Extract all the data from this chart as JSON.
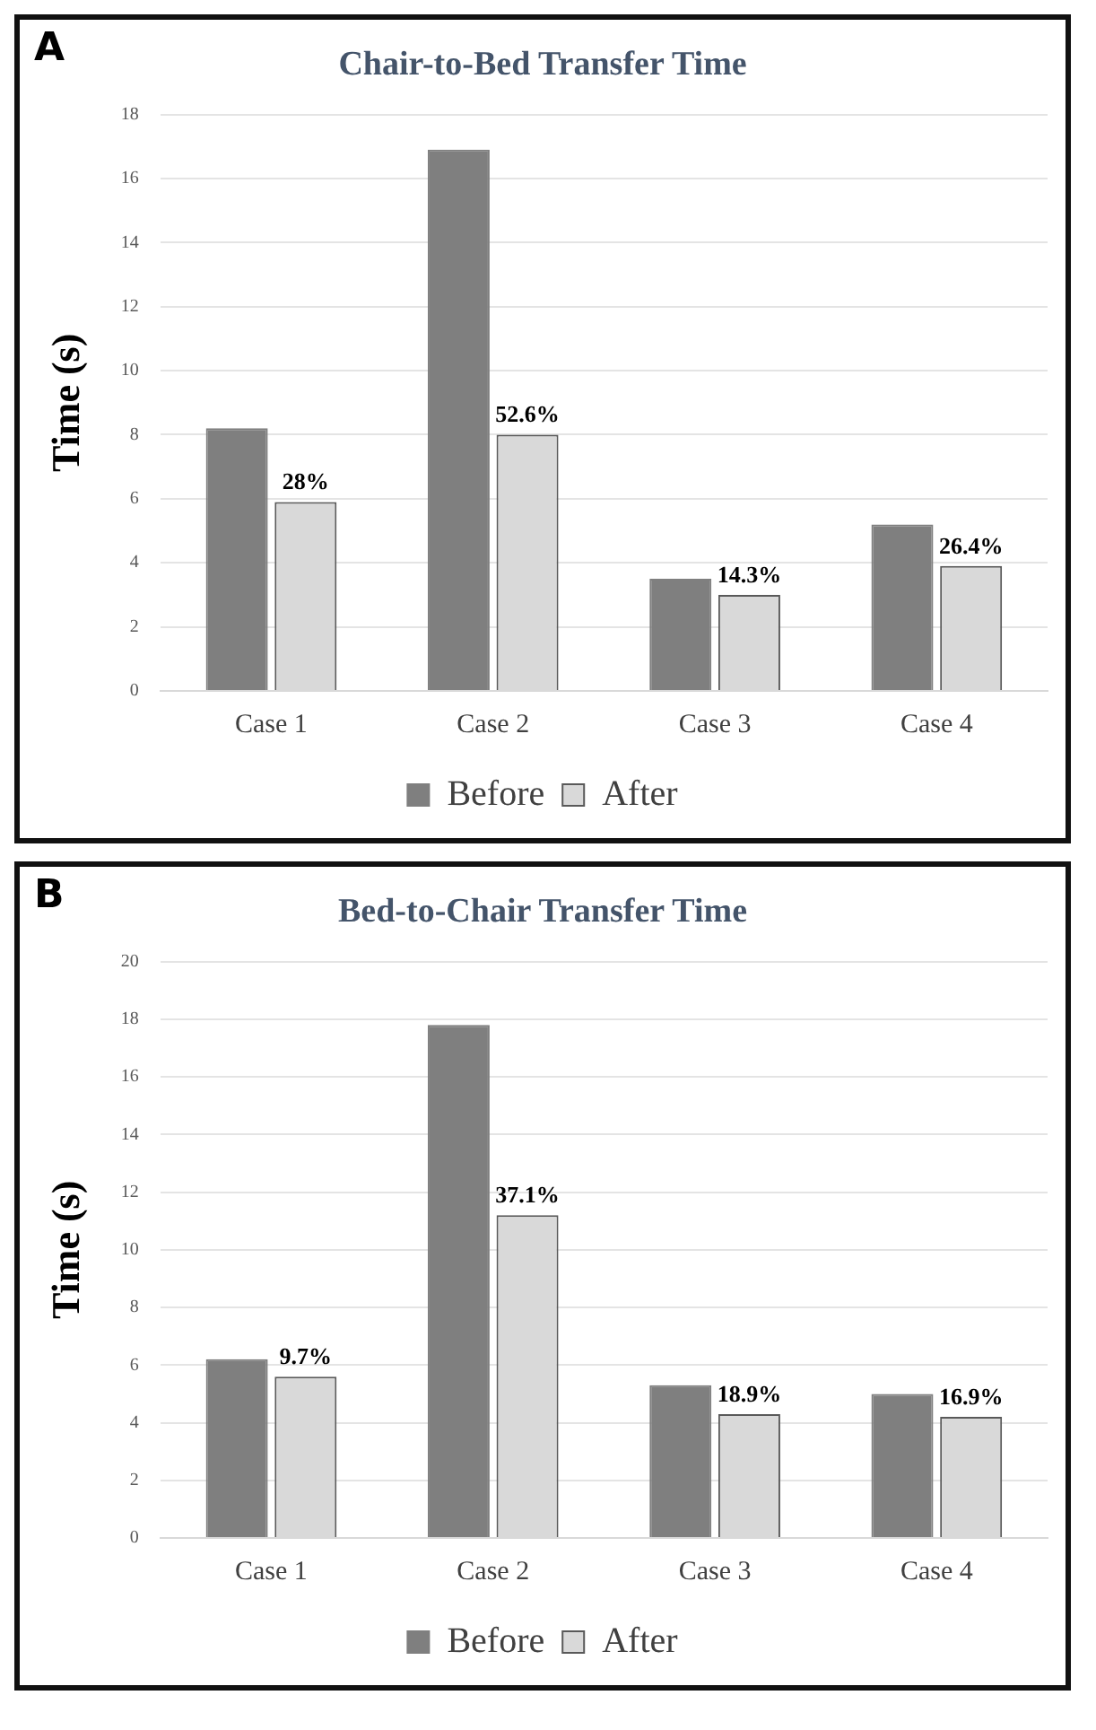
{
  "chart_data": [
    {
      "type": "bar",
      "title": "Chair-to-Bed Transfer Time",
      "ylabel": "Time (s)",
      "categories": [
        "Case 1",
        "Case 2",
        "Case 3",
        "Case 4"
      ],
      "annotations": [
        "A",
        {
          "text": "28%",
          "x": "Case 1",
          "y": 5.9
        },
        {
          "text": "52.6%",
          "x": "Case 2",
          "y": 8.0
        },
        {
          "text": "14.3%",
          "x": "Case 3",
          "y": 3.0
        },
        {
          "text": "26.4%",
          "x": "Case 4",
          "y": 3.9
        }
      ],
      "series": [
        {
          "name": "Before",
          "color": "#7f7f7f",
          "values": [
            8.2,
            16.9,
            3.5,
            5.2
          ]
        },
        {
          "name": "After",
          "color": "#d9d9d9",
          "values": [
            5.9,
            8.0,
            3.0,
            3.9
          ]
        }
      ],
      "ylim": [
        0,
        18
      ],
      "yticks": [
        0,
        2,
        4,
        6,
        8,
        10,
        12,
        14,
        16,
        18
      ],
      "grid": "y",
      "legend": "bottom"
    },
    {
      "type": "bar",
      "title": "Bed-to-Chair Transfer Time",
      "ylabel": "Time (s)",
      "categories": [
        "Case 1",
        "Case 2",
        "Case 3",
        "Case 4"
      ],
      "annotations": [
        "B",
        {
          "text": "9.7%",
          "x": "Case 1",
          "y": 5.6
        },
        {
          "text": "37.1%",
          "x": "Case 2",
          "y": 11.2
        },
        {
          "text": "18.9%",
          "x": "Case 3",
          "y": 4.3
        },
        {
          "text": "16.9%",
          "x": "Case 4",
          "y": 4.2
        }
      ],
      "series": [
        {
          "name": "Before",
          "color": "#7f7f7f",
          "values": [
            6.2,
            17.8,
            5.3,
            5.0
          ]
        },
        {
          "name": "After",
          "color": "#d9d9d9",
          "values": [
            5.6,
            11.2,
            4.3,
            4.2
          ]
        }
      ],
      "ylim": [
        0,
        20
      ],
      "yticks": [
        0,
        2,
        4,
        6,
        8,
        10,
        12,
        14,
        16,
        18,
        20
      ],
      "grid": "y",
      "legend": "bottom"
    }
  ]
}
